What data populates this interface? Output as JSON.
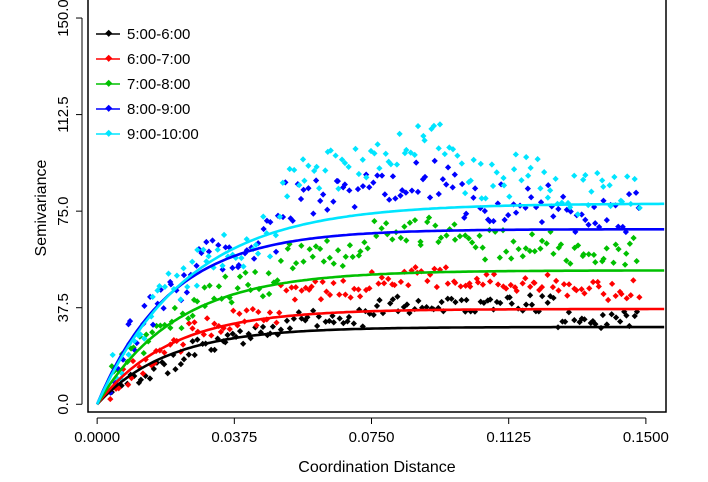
{
  "chart_data": {
    "type": "scatter",
    "xlabel": "Coordination Distance",
    "ylabel": "Semivariance",
    "xlim": [
      -0.0025,
      0.1555
    ],
    "ylim": [
      -3,
      157
    ],
    "xticks": [
      "0.0000",
      "0.0375",
      "0.0750",
      "0.1125",
      "0.1500"
    ],
    "yticks": [
      "0.0",
      "37.5",
      "75.0",
      "112.5",
      "150.0"
    ],
    "xtick_values": [
      0,
      0.0375,
      0.075,
      0.1125,
      0.15
    ],
    "ytick_values": [
      0,
      37.5,
      75,
      112.5,
      150
    ],
    "legend_position": "top-left",
    "grid": false,
    "series": [
      {
        "name": "5:00-6:00",
        "color": "#000000",
        "sill": 30,
        "range": 0.058,
        "scatter_extra": [
          0.8,
          1.0,
          1.15,
          1.3,
          1.3,
          1.1
        ],
        "points_hint": {
          "noise": 3.5,
          "seed": 11
        }
      },
      {
        "name": "6:00-7:00",
        "color": "#ff0000",
        "sill": 37,
        "range": 0.06,
        "scatter_extra": [
          0.9,
          1.05,
          1.25,
          1.35,
          1.3,
          1.2
        ],
        "points_hint": {
          "noise": 4,
          "seed": 23
        }
      },
      {
        "name": "7:00-8:00",
        "color": "#00c000",
        "sill": 52,
        "range": 0.065,
        "scatter_extra": [
          1.0,
          1.05,
          1.2,
          1.3,
          1.2,
          1.15
        ],
        "points_hint": {
          "noise": 6,
          "seed": 37
        }
      },
      {
        "name": "8:00-9:00",
        "color": "#0000ff",
        "sill": 68,
        "range": 0.06,
        "scatter_extra": [
          1.0,
          1.05,
          1.25,
          1.3,
          1.15,
          1.1
        ],
        "points_hint": {
          "noise": 8,
          "seed": 51
        }
      },
      {
        "name": "9:00-10:00",
        "color": "#00e5ff",
        "sill": 78,
        "range": 0.075,
        "scatter_extra": [
          1.0,
          1.0,
          1.25,
          1.32,
          1.15,
          1.05
        ],
        "points_hint": {
          "noise": 9,
          "seed": 73
        }
      }
    ]
  }
}
